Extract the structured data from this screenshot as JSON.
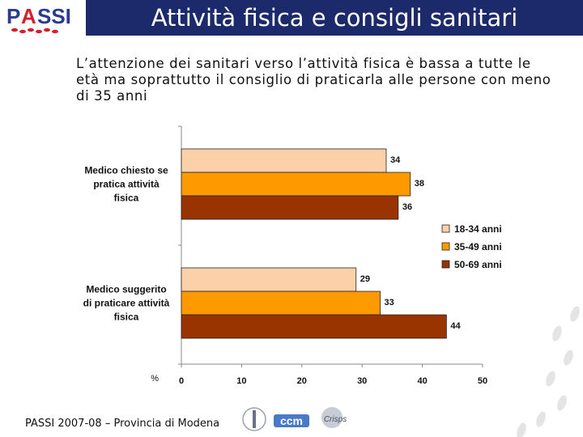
{
  "header": {
    "title": "Attività fisica e consigli sanitari",
    "logo_text": "PASSI"
  },
  "subtitle": "L’attenzione dei sanitari verso l’attività fisica è bassa a tutte le età ma soprattutto il consiglio di praticarla alle persone con meno di 35 anni",
  "footer": {
    "text": "PASSI 2007-08 – Provincia di Modena",
    "logos": [
      "ccm-logo",
      "crisps-logo",
      "istituto-superiore-sanita-seal"
    ]
  },
  "chart_data": {
    "type": "bar",
    "orientation": "horizontal",
    "categories": [
      [
        "Medico chiesto se",
        "pratica attività",
        "fisica"
      ],
      [
        "Medico suggerito",
        "di praticare attività",
        "fisica"
      ]
    ],
    "series": [
      {
        "name": "18-34 anni",
        "values": [
          34,
          29
        ],
        "color": "#fcd0a8"
      },
      {
        "name": "35-49 anni",
        "values": [
          38,
          33
        ],
        "color": "#ff9900"
      },
      {
        "name": "50-69 anni",
        "values": [
          36,
          44
        ],
        "color": "#993300"
      }
    ],
    "xlabel": "%",
    "xlim": [
      0,
      50
    ],
    "xticks": [
      0,
      10,
      20,
      30,
      40,
      50
    ],
    "grid": false,
    "legend_position": "right"
  }
}
